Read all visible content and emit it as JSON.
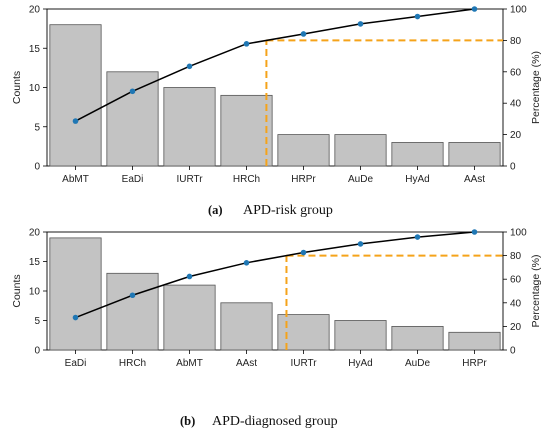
{
  "colors": {
    "bar": "#c3c3c3",
    "bar_stroke": "#555555",
    "line": "#000000",
    "marker": "#1f77b4",
    "threshold": "#f5a31a"
  },
  "chart_data": [
    {
      "type": "bar",
      "title": "",
      "categories": [
        "AbMT",
        "EaDi",
        "IURTr",
        "HRCh",
        "HRPr",
        "AuDe",
        "HyAd",
        "AAst"
      ],
      "values": [
        18,
        12,
        10,
        9,
        4,
        4,
        3,
        3
      ],
      "cumulative_percent": [
        28.6,
        47.6,
        63.5,
        77.8,
        84.1,
        90.5,
        95.2,
        100
      ],
      "threshold_percent": 80,
      "ylabel": "Counts",
      "y2label": "Percentage (%)",
      "ylim": [
        0,
        20
      ],
      "y2lim": [
        0,
        100
      ],
      "yticks": [
        0,
        5,
        10,
        15,
        20
      ],
      "y2ticks": [
        0,
        20,
        40,
        60,
        80,
        100
      ],
      "caption_letter": "(a)",
      "caption_text": "APD-risk group"
    },
    {
      "type": "bar",
      "title": "",
      "categories": [
        "EaDi",
        "HRCh",
        "AbMT",
        "AAst",
        "IURTr",
        "HyAd",
        "AuDe",
        "HRPr"
      ],
      "values": [
        19,
        13,
        11,
        8,
        6,
        5,
        4,
        3
      ],
      "cumulative_percent": [
        27.5,
        46.4,
        62.3,
        73.9,
        82.6,
        89.9,
        95.7,
        100
      ],
      "threshold_percent": 80,
      "ylabel": "Counts",
      "y2label": "Percentage (%)",
      "ylim": [
        0,
        20
      ],
      "y2lim": [
        0,
        100
      ],
      "yticks": [
        0,
        5,
        10,
        15,
        20
      ],
      "y2ticks": [
        0,
        20,
        40,
        60,
        80,
        100
      ],
      "caption_letter": "(b)",
      "caption_text": "APD-diagnosed group"
    }
  ]
}
